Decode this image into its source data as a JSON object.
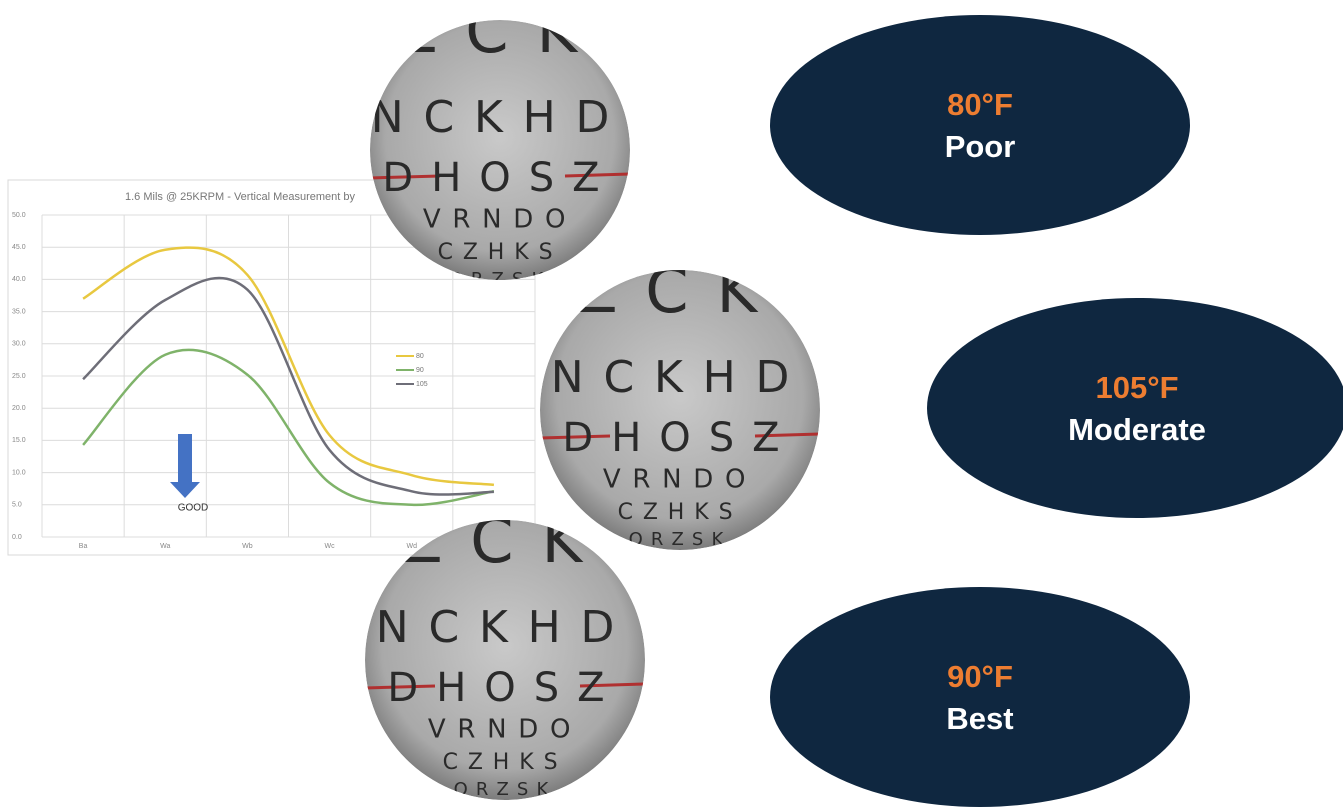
{
  "chart": {
    "type": "line",
    "title": "1.6 Mils @ 25KRPM - Vertical Measurement by",
    "categories": [
      "Ba",
      "Wa",
      "Wb",
      "Wc",
      "Wd",
      null
    ],
    "series": [
      {
        "name": "80",
        "color": "#e8c840",
        "values": [
          37.0,
          44.6,
          40.7,
          15.8,
          9.6,
          8.1
        ]
      },
      {
        "name": "90",
        "color": "#7fb36a",
        "values": [
          14.3,
          28.3,
          25.2,
          8.4,
          5.0,
          7.1
        ]
      },
      {
        "name": "105",
        "color": "#6e6e78",
        "values": [
          24.5,
          36.8,
          38.4,
          13.5,
          7.1,
          7.0
        ]
      }
    ],
    "ylim": [
      0,
      50
    ],
    "yticks": [
      {
        "value": 0,
        "label": "0.0"
      },
      {
        "value": 5,
        "label": "5.0"
      },
      {
        "value": 10,
        "label": "10.0"
      },
      {
        "value": 15,
        "label": "15.0"
      },
      {
        "value": 20,
        "label": "20.0"
      },
      {
        "value": 25,
        "label": "25.0"
      },
      {
        "value": 30,
        "label": "30.0"
      },
      {
        "value": 35,
        "label": "35.0"
      },
      {
        "value": 40,
        "label": "40.0"
      },
      {
        "value": 45,
        "label": "45.0"
      },
      {
        "value": 50,
        "label": "50.0"
      }
    ],
    "grid": true,
    "legend": "right",
    "annotation": "GOOD"
  },
  "eye_chart": {
    "rows": [
      "ZCK",
      "NCKHD",
      "DHOSZ",
      "VRNDO",
      "CZHKS",
      "ORZSK"
    ]
  },
  "callouts": [
    {
      "temperature": "80°F",
      "rating": "Poor"
    },
    {
      "temperature": "105°F",
      "rating": "Moderate"
    },
    {
      "temperature": "90°F",
      "rating": "Best"
    }
  ]
}
